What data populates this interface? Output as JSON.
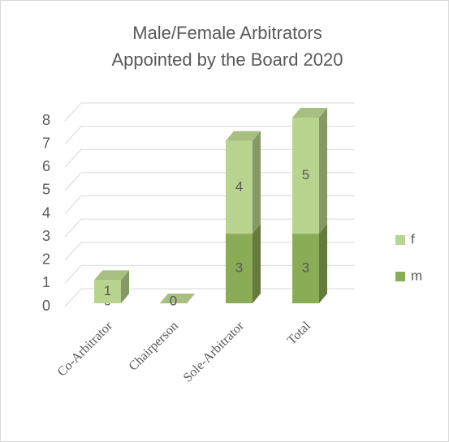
{
  "chart_data": {
    "type": "bar3d_stacked",
    "title": [
      "Male/Female Arbitrators",
      "Appointed by the Board 2020"
    ],
    "categories": [
      "Co-Arbitrator",
      "Chairperson",
      "Sole-Arbitrator",
      "Total"
    ],
    "series": [
      {
        "name": "m",
        "color": "#8aac56",
        "values": [
          0,
          0,
          3,
          3
        ]
      },
      {
        "name": "f",
        "color": "#b9d48e",
        "values": [
          1,
          0,
          4,
          5
        ]
      }
    ],
    "ylim": [
      0,
      8
    ],
    "yticks": [
      0,
      1,
      2,
      3,
      4,
      5,
      6,
      7,
      8
    ],
    "grid": true,
    "legend": "right"
  }
}
